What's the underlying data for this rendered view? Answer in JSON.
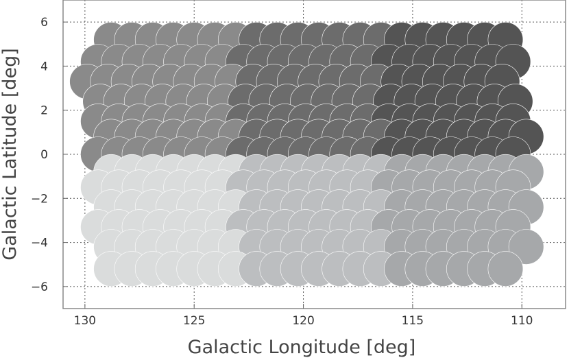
{
  "chart_data": {
    "type": "scatter",
    "xlabel": "Galactic Longitude [deg]",
    "ylabel": "Galactic Latitude [deg]",
    "xlim": [
      131.0,
      108.0
    ],
    "ylim": [
      -7.0,
      7.0
    ],
    "x_ticks": [
      130,
      125,
      120,
      115,
      110
    ],
    "y_ticks": [
      6,
      4,
      2,
      0,
      -2,
      -4,
      -6
    ],
    "grid": true,
    "legend": "none",
    "marker": "circle",
    "marker_radius_deg": 0.8,
    "row_latitudes": [
      5.2,
      4.2,
      3.3,
      2.4,
      1.5,
      0.8,
      0.0,
      -0.8,
      -1.5,
      -2.4,
      -3.3,
      -4.2,
      -5.2
    ],
    "row_longitude_start": [
      128.8,
      129.4,
      129.9,
      129.3,
      129.4,
      128.8,
      129.4,
      128.8,
      129.4,
      128.8,
      129.4,
      128.8,
      128.8
    ],
    "row_counts": [
      20,
      21,
      21,
      21,
      21,
      21,
      21,
      21,
      21,
      21,
      21,
      21,
      20
    ],
    "longitude_step": 0.95,
    "region_boundaries_longitude": [
      122.8,
      116.2
    ],
    "region_colors": {
      "north_left": "#8a8a8a",
      "north_middle": "#6c6c6c",
      "north_right": "#545454",
      "south_left": "#dadcdc",
      "south_middle": "#bcbec0",
      "south_right": "#a6a8aa"
    }
  }
}
